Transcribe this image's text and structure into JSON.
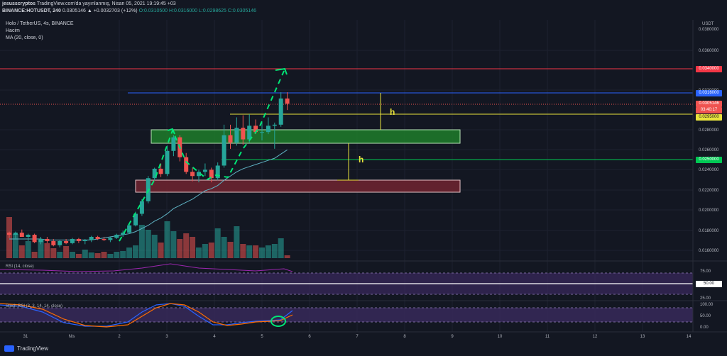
{
  "header": {
    "publisher": "jesusscryptos",
    "published_text": "TradingView.com'da yayınlanmış, Nisan 05, 2021 19:19:45 +03",
    "symbol": "BINANCE:HOTUSDT, 240",
    "change": "0.0305146 ▲ +0.0032703 (+12%)",
    "ohlc": "O:0.0310500 H:0.0316000 L:0.0298625 C:0.0305146"
  },
  "legend": {
    "title": "Holo / TetherUS, 4s, BINANCE",
    "volume": "Hacim",
    "ma": "MA (20, close, 0)"
  },
  "price_axis": {
    "unit": "USDT",
    "ticks": [
      "0.0380000",
      "0.0360000",
      "0.0320000",
      "0.0280000",
      "0.0260000",
      "0.0240000",
      "0.0220000",
      "0.0200000",
      "0.0180000",
      "0.0160000"
    ]
  },
  "price_tags": {
    "resistance": "0.0340000",
    "blue_line": "0.0316000",
    "last_price": "0.0305146",
    "countdown": "03:40:17",
    "yellow_line": "0.0295000",
    "green_line": "0.0250000"
  },
  "annotations": {
    "measure_a": "h",
    "measure_b": "h"
  },
  "rsi": {
    "label": "RSI (14, close)",
    "ticks": [
      "75.00",
      "50.00",
      "25.00"
    ],
    "current_tag": "50.00"
  },
  "stoch_rsi": {
    "label": "Stoch RSI (3, 3, 14, 14, close)",
    "ticks": [
      "100.00",
      "50.00",
      "0.00"
    ]
  },
  "time_axis": {
    "ticks": [
      "31",
      "Nis",
      "2",
      "3",
      "4",
      "5",
      "6",
      "7",
      "8",
      "9",
      "10",
      "11",
      "12",
      "13",
      "14"
    ]
  },
  "brand": "TradingView",
  "colors": {
    "bg": "#131722",
    "up": "#26a69a",
    "down": "#ef5350",
    "ma": "#5fb3c4",
    "resistance": "#f23645",
    "blue": "#2962ff",
    "yellow": "#e8e33c",
    "green": "#00c853",
    "purple_band": "#3a2a5e",
    "rsi_line": "#9c27b0"
  },
  "chart_data": {
    "type": "candlestick",
    "symbol": "HOTUSDT",
    "timeframe": "4h",
    "ylim": [
      0.0155,
      0.0385
    ],
    "candles": [
      {
        "o": 0.0182,
        "h": 0.0183,
        "l": 0.0177,
        "c": 0.018
      },
      {
        "o": 0.018,
        "h": 0.0183,
        "l": 0.0176,
        "c": 0.0182
      },
      {
        "o": 0.0182,
        "h": 0.0185,
        "l": 0.0178,
        "c": 0.0178
      },
      {
        "o": 0.0178,
        "h": 0.0181,
        "l": 0.0174,
        "c": 0.018
      },
      {
        "o": 0.018,
        "h": 0.0181,
        "l": 0.0172,
        "c": 0.0173
      },
      {
        "o": 0.0173,
        "h": 0.0178,
        "l": 0.0171,
        "c": 0.0176
      },
      {
        "o": 0.0176,
        "h": 0.0178,
        "l": 0.0172,
        "c": 0.0174
      },
      {
        "o": 0.0174,
        "h": 0.0176,
        "l": 0.0169,
        "c": 0.017
      },
      {
        "o": 0.017,
        "h": 0.0175,
        "l": 0.0168,
        "c": 0.0174
      },
      {
        "o": 0.0174,
        "h": 0.0176,
        "l": 0.0171,
        "c": 0.0172
      },
      {
        "o": 0.0172,
        "h": 0.0177,
        "l": 0.0171,
        "c": 0.0176
      },
      {
        "o": 0.0176,
        "h": 0.0177,
        "l": 0.0172,
        "c": 0.0174
      },
      {
        "o": 0.0174,
        "h": 0.0176,
        "l": 0.0171,
        "c": 0.0175
      },
      {
        "o": 0.0175,
        "h": 0.0179,
        "l": 0.0173,
        "c": 0.0178
      },
      {
        "o": 0.0178,
        "h": 0.0179,
        "l": 0.0175,
        "c": 0.0176
      },
      {
        "o": 0.0176,
        "h": 0.0178,
        "l": 0.0174,
        "c": 0.0175
      },
      {
        "o": 0.0175,
        "h": 0.0178,
        "l": 0.0173,
        "c": 0.0177
      },
      {
        "o": 0.0177,
        "h": 0.0181,
        "l": 0.0176,
        "c": 0.018
      },
      {
        "o": 0.018,
        "h": 0.0184,
        "l": 0.0178,
        "c": 0.0182
      },
      {
        "o": 0.0182,
        "h": 0.019,
        "l": 0.0181,
        "c": 0.0189
      },
      {
        "o": 0.0189,
        "h": 0.0202,
        "l": 0.0188,
        "c": 0.02
      },
      {
        "o": 0.02,
        "h": 0.0214,
        "l": 0.0198,
        "c": 0.0212
      },
      {
        "o": 0.0212,
        "h": 0.0236,
        "l": 0.021,
        "c": 0.0234
      },
      {
        "o": 0.0234,
        "h": 0.0244,
        "l": 0.0232,
        "c": 0.0243
      },
      {
        "o": 0.0243,
        "h": 0.0248,
        "l": 0.0235,
        "c": 0.0238
      },
      {
        "o": 0.0238,
        "h": 0.0265,
        "l": 0.0236,
        "c": 0.026
      },
      {
        "o": 0.026,
        "h": 0.0275,
        "l": 0.0255,
        "c": 0.0273
      },
      {
        "o": 0.0273,
        "h": 0.0275,
        "l": 0.025,
        "c": 0.0254
      },
      {
        "o": 0.0254,
        "h": 0.0258,
        "l": 0.0238,
        "c": 0.024
      },
      {
        "o": 0.024,
        "h": 0.0244,
        "l": 0.0231,
        "c": 0.0236
      },
      {
        "o": 0.0236,
        "h": 0.0242,
        "l": 0.023,
        "c": 0.024
      },
      {
        "o": 0.024,
        "h": 0.0248,
        "l": 0.0236,
        "c": 0.0242
      },
      {
        "o": 0.0242,
        "h": 0.0244,
        "l": 0.023,
        "c": 0.0234
      },
      {
        "o": 0.0234,
        "h": 0.0249,
        "l": 0.0232,
        "c": 0.0246
      },
      {
        "o": 0.0246,
        "h": 0.0285,
        "l": 0.0244,
        "c": 0.0275
      },
      {
        "o": 0.0275,
        "h": 0.0285,
        "l": 0.0262,
        "c": 0.0268
      },
      {
        "o": 0.0268,
        "h": 0.0292,
        "l": 0.0265,
        "c": 0.0282
      },
      {
        "o": 0.0282,
        "h": 0.0294,
        "l": 0.0266,
        "c": 0.0271
      },
      {
        "o": 0.0271,
        "h": 0.0295,
        "l": 0.0268,
        "c": 0.0284
      },
      {
        "o": 0.0284,
        "h": 0.029,
        "l": 0.0276,
        "c": 0.0278
      },
      {
        "o": 0.0278,
        "h": 0.0288,
        "l": 0.027,
        "c": 0.0278
      },
      {
        "o": 0.0278,
        "h": 0.0292,
        "l": 0.0276,
        "c": 0.0284
      },
      {
        "o": 0.0284,
        "h": 0.0287,
        "l": 0.0262,
        "c": 0.0285
      },
      {
        "o": 0.0285,
        "h": 0.0316,
        "l": 0.0283,
        "c": 0.031
      },
      {
        "o": 0.031,
        "h": 0.0316,
        "l": 0.0299,
        "c": 0.0305
      }
    ],
    "volume": [
      0.58,
      0.34,
      0.18,
      0.24,
      0.09,
      0.26,
      0.21,
      0.14,
      0.09,
      0.17,
      0.09,
      0.06,
      0.12,
      0.08,
      0.07,
      0.09,
      0.06,
      0.09,
      0.1,
      0.15,
      0.18,
      0.47,
      0.4,
      0.33,
      0.22,
      0.52,
      0.38,
      0.27,
      0.35,
      0.3,
      0.15,
      0.2,
      0.22,
      0.42,
      0.3,
      0.23,
      0.45,
      0.2,
      0.18,
      0.18,
      0.15,
      0.18,
      0.2,
      0.28,
      0.04
    ],
    "ma": [
      0.0176,
      0.0176,
      0.0176,
      0.0176,
      0.0176,
      0.0176,
      0.0175,
      0.0175,
      0.0175,
      0.0175,
      0.0175,
      0.0175,
      0.0175,
      0.0175,
      0.0176,
      0.0177,
      0.0178,
      0.0179,
      0.018,
      0.0181,
      0.0183,
      0.0186,
      0.0189,
      0.0193,
      0.0196,
      0.02,
      0.0205,
      0.0208,
      0.0211,
      0.0214,
      0.0218,
      0.0222,
      0.0224,
      0.0227,
      0.0232,
      0.0236,
      0.024,
      0.0243,
      0.0245,
      0.0247,
      0.0249,
      0.0251,
      0.0253,
      0.0257,
      0.0261
    ],
    "levels": {
      "resistance": 0.034,
      "blue": 0.0316,
      "yellow": 0.0295,
      "green": 0.025
    },
    "zones": [
      {
        "name": "green_zone",
        "low": 0.0267,
        "high": 0.0279
      },
      {
        "name": "red_zone",
        "low": 0.0219,
        "high": 0.0229
      }
    ]
  }
}
